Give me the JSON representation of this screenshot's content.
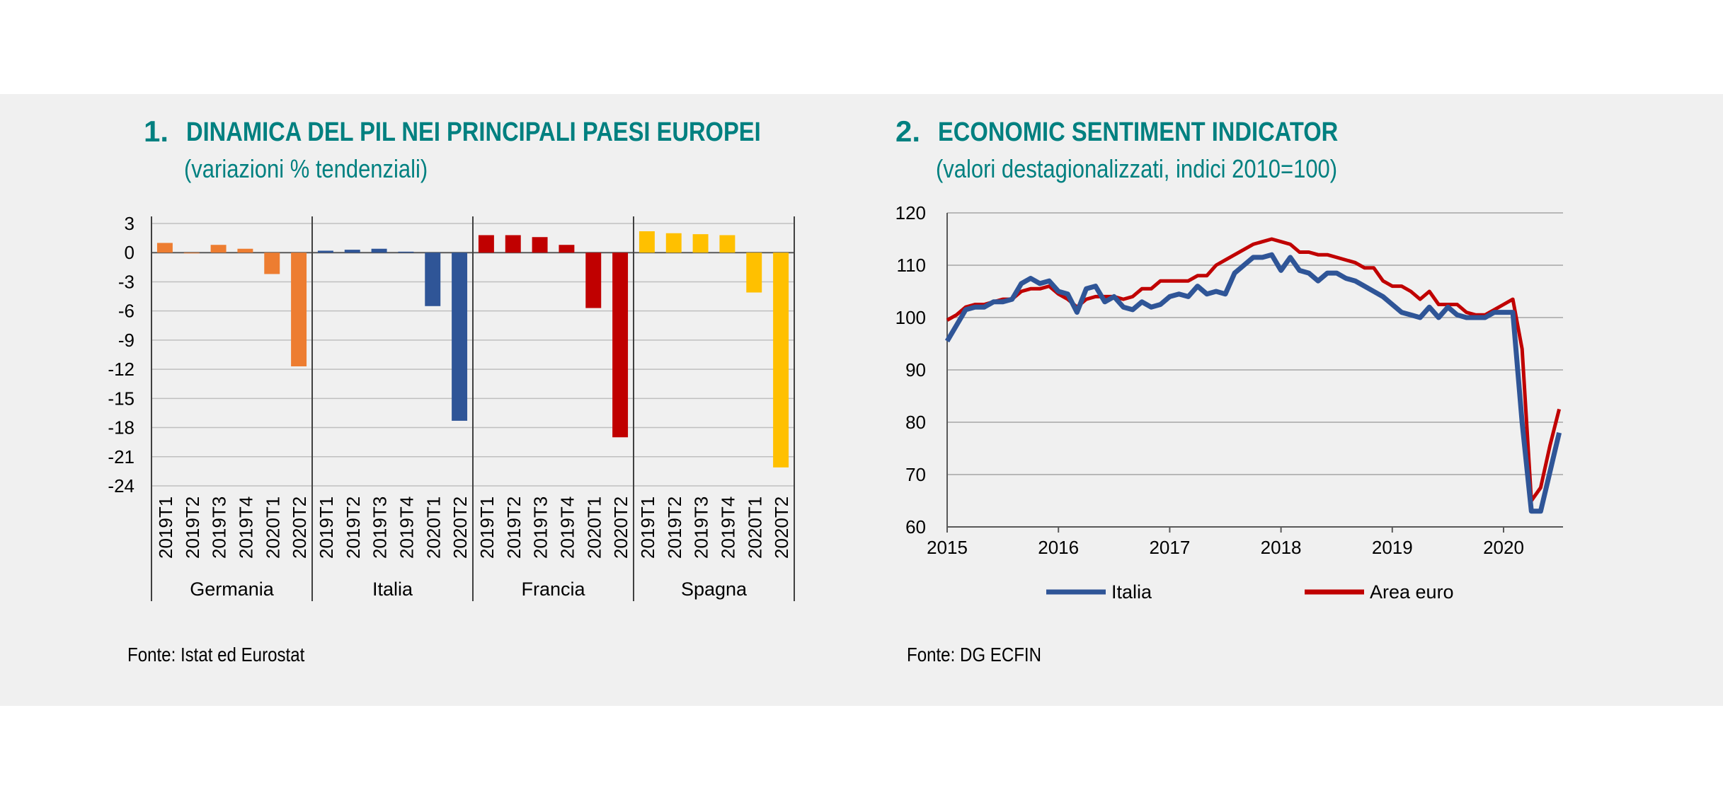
{
  "chart_data": [
    {
      "type": "bar",
      "number": "1.",
      "title": "DINAMICA DEL PIL NEI PRINCIPALI PAESI EUROPEI",
      "subtitle": "(variazioni % tendenziali)",
      "source": "Fonte: Istat ed Eurostat",
      "yticks": [
        3,
        0,
        -3,
        -6,
        -9,
        -12,
        -15,
        -18,
        -21,
        -24
      ],
      "ylim": [
        -24,
        3
      ],
      "grid": true,
      "periods": [
        "2019T1",
        "2019T2",
        "2019T3",
        "2019T4",
        "2020T1",
        "2020T2"
      ],
      "groups": [
        {
          "name": "Germania",
          "color": "#ed7d31",
          "values": [
            1.0,
            0.0,
            0.8,
            0.4,
            -2.2,
            -11.7
          ]
        },
        {
          "name": "Italia",
          "color": "#2f5597",
          "values": [
            0.2,
            0.3,
            0.4,
            0.1,
            -5.5,
            -17.3
          ]
        },
        {
          "name": "Francia",
          "color": "#c00000",
          "values": [
            1.8,
            1.8,
            1.6,
            0.8,
            -5.7,
            -19.0
          ]
        },
        {
          "name": "Spagna",
          "color": "#ffc000",
          "values": [
            2.2,
            2.0,
            1.9,
            1.8,
            -4.1,
            -22.1
          ]
        }
      ]
    },
    {
      "type": "line",
      "number": "2.",
      "title": "ECONOMIC SENTIMENT INDICATOR",
      "subtitle": "(valori destagionalizzati, indici 2010=100)",
      "source": "Fonte: DG ECFIN",
      "yticks": [
        120,
        110,
        100,
        90,
        80,
        70,
        60
      ],
      "ylim": [
        60,
        120
      ],
      "xticks": [
        "2015",
        "2016",
        "2017",
        "2018",
        "2019",
        "2020"
      ],
      "x_start": "2015-01",
      "grid": true,
      "legend_position": "bottom",
      "series": [
        {
          "name": "Italia",
          "color": "#2f5597",
          "values": [
            95.5,
            98.5,
            101.5,
            102.0,
            102.0,
            103.0,
            103.0,
            103.5,
            106.5,
            107.5,
            106.5,
            107.0,
            105.0,
            104.5,
            101.0,
            105.5,
            106.0,
            103.0,
            104.0,
            102.0,
            101.5,
            103.0,
            102.0,
            102.5,
            104.0,
            104.5,
            104.0,
            106.0,
            104.5,
            105.0,
            104.5,
            108.5,
            110.0,
            111.5,
            111.5,
            112.0,
            109.0,
            111.5,
            109.0,
            108.5,
            107.0,
            108.5,
            108.5,
            107.5,
            107.0,
            106.0,
            105.0,
            104.0,
            102.5,
            101.0,
            100.5,
            100.0,
            102.0,
            100.0,
            102.0,
            100.5,
            100.0,
            100.0,
            100.0,
            101.0,
            101.0,
            101.0,
            80.0,
            63.0,
            63.0,
            70.5,
            78.0
          ]
        },
        {
          "name": "Area euro",
          "color": "#c00000",
          "values": [
            99.5,
            100.5,
            102.0,
            102.5,
            102.5,
            103.0,
            103.5,
            103.5,
            105.0,
            105.5,
            105.5,
            106.0,
            104.5,
            103.5,
            102.0,
            103.5,
            104.0,
            104.0,
            104.0,
            103.5,
            104.0,
            105.5,
            105.5,
            107.0,
            107.0,
            107.0,
            107.0,
            108.0,
            108.0,
            110.0,
            111.0,
            112.0,
            113.0,
            114.0,
            114.5,
            115.0,
            114.5,
            114.0,
            112.5,
            112.5,
            112.0,
            112.0,
            111.5,
            111.0,
            110.5,
            109.5,
            109.5,
            107.0,
            106.0,
            106.0,
            105.0,
            103.5,
            105.0,
            102.5,
            102.5,
            102.5,
            101.0,
            100.5,
            100.5,
            101.5,
            102.5,
            103.5,
            94.0,
            65.0,
            67.5,
            75.5,
            82.5
          ]
        }
      ]
    }
  ]
}
